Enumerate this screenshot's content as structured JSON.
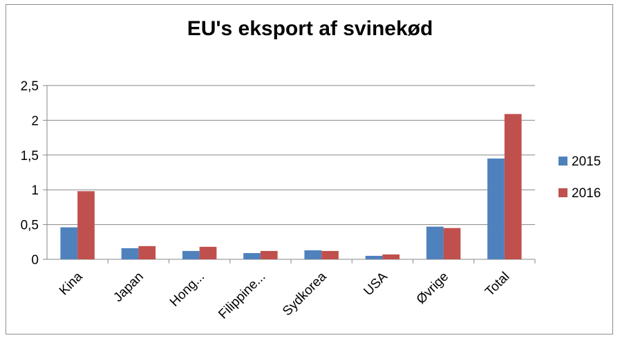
{
  "chart_data": {
    "type": "bar",
    "title": "EU's eksport af svinekød",
    "xlabel": "",
    "ylabel": "",
    "categories": [
      "Kina",
      "Japan",
      "Hong...",
      "Filippine...",
      "Sydkorea",
      "USA",
      "Øvrige",
      "Total"
    ],
    "series": [
      {
        "name": "2015",
        "color": "#4f81bd",
        "values": [
          0.46,
          0.16,
          0.12,
          0.09,
          0.13,
          0.05,
          0.47,
          1.45
        ]
      },
      {
        "name": "2016",
        "color": "#c0504d",
        "values": [
          0.98,
          0.19,
          0.18,
          0.12,
          0.12,
          0.07,
          0.45,
          2.09
        ]
      }
    ],
    "ylim": [
      0,
      2.5
    ],
    "yticks": [
      "0",
      "0,5",
      "1",
      "1,5",
      "2",
      "2,5"
    ],
    "grid": true,
    "legend_position": "right"
  }
}
